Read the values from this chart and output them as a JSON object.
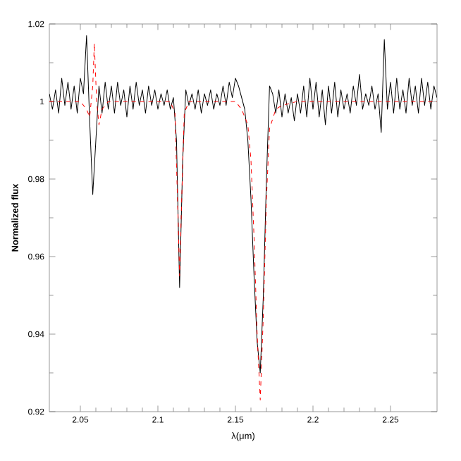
{
  "chart_data": {
    "type": "line",
    "xlabel": "λ(μm)",
    "ylabel": "Normalized flux",
    "xlim": [
      2.03,
      2.28
    ],
    "ylim": [
      0.92,
      1.02
    ],
    "xticks": [
      2.05,
      2.1,
      2.15,
      2.2,
      2.25
    ],
    "yticks": [
      0.92,
      0.94,
      0.96,
      0.98,
      1,
      1.02
    ],
    "grid": false,
    "marker": "none",
    "series": [
      {
        "color": "#000000",
        "line_style": "solid",
        "x": [
          2.03,
          2.032,
          2.034,
          2.036,
          2.038,
          2.04,
          2.042,
          2.044,
          2.046,
          2.048,
          2.05,
          2.052,
          2.054,
          2.056,
          2.058,
          2.06,
          2.062,
          2.064,
          2.066,
          2.068,
          2.07,
          2.072,
          2.074,
          2.076,
          2.078,
          2.08,
          2.082,
          2.084,
          2.086,
          2.088,
          2.09,
          2.092,
          2.094,
          2.096,
          2.098,
          2.1,
          2.102,
          2.104,
          2.106,
          2.108,
          2.11,
          2.112,
          2.114,
          2.116,
          2.118,
          2.12,
          2.122,
          2.124,
          2.126,
          2.128,
          2.13,
          2.132,
          2.134,
          2.136,
          2.138,
          2.14,
          2.142,
          2.144,
          2.146,
          2.148,
          2.15,
          2.152,
          2.154,
          2.156,
          2.158,
          2.16,
          2.162,
          2.164,
          2.166,
          2.168,
          2.17,
          2.172,
          2.174,
          2.176,
          2.178,
          2.18,
          2.182,
          2.184,
          2.186,
          2.188,
          2.19,
          2.192,
          2.194,
          2.196,
          2.198,
          2.2,
          2.202,
          2.204,
          2.206,
          2.208,
          2.21,
          2.212,
          2.214,
          2.216,
          2.218,
          2.22,
          2.222,
          2.224,
          2.226,
          2.228,
          2.23,
          2.232,
          2.234,
          2.236,
          2.238,
          2.24,
          2.242,
          2.244,
          2.246,
          2.248,
          2.25,
          2.252,
          2.254,
          2.256,
          2.258,
          2.26,
          2.262,
          2.264,
          2.266,
          2.268,
          2.27,
          2.272,
          2.274,
          2.276,
          2.278,
          2.28
        ],
        "values": [
          1.002,
          0.998,
          1.003,
          0.997,
          1.006,
          0.999,
          1.005,
          0.998,
          1.004,
          0.997,
          1.006,
          1.002,
          1.017,
          0.995,
          0.976,
          0.99,
          1.004,
          0.997,
          1.005,
          0.998,
          1.004,
          0.997,
          1.005,
          0.999,
          1.003,
          0.996,
          1.004,
          0.998,
          1.005,
          0.999,
          1.003,
          0.997,
          1.004,
          0.999,
          1.003,
          0.998,
          1.002,
          0.999,
          1.003,
          0.998,
          1.001,
          0.99,
          0.952,
          0.985,
          1.003,
          0.999,
          1.002,
          0.998,
          1.003,
          0.997,
          1.002,
          0.999,
          1.003,
          0.998,
          1.002,
          0.999,
          1.004,
          0.999,
          1.005,
          1.001,
          1.006,
          1.004,
          1.001,
          0.998,
          0.99,
          0.975,
          0.955,
          0.938,
          0.93,
          0.95,
          0.98,
          1.004,
          1.002,
          0.997,
          1.003,
          0.996,
          1.002,
          0.997,
          1.001,
          0.995,
          1.002,
          0.997,
          1.004,
          0.996,
          1.006,
          0.998,
          1.005,
          0.996,
          1.003,
          0.994,
          1.004,
          0.997,
          1.005,
          0.996,
          1.003,
          0.998,
          1.002,
          0.997,
          1.004,
          0.999,
          1.007,
          0.998,
          1.002,
          0.999,
          1.004,
          0.998,
          1.002,
          0.992,
          1.016,
          0.998,
          1.005,
          0.997,
          1.006,
          0.998,
          1.003,
          0.997,
          1.006,
          0.999,
          1.004,
          0.997,
          1.006,
          0.999,
          1.005,
          0.998,
          1.004,
          1.001
        ]
      },
      {
        "color": "#ff0000",
        "line_style": "dashed",
        "x": [
          2.03,
          2.05,
          2.054,
          2.056,
          2.058,
          2.059,
          2.0605,
          2.062,
          2.064,
          2.068,
          2.108,
          2.111,
          2.113,
          2.114,
          2.115,
          2.117,
          2.12,
          2.15,
          2.154,
          2.158,
          2.16,
          2.162,
          2.164,
          2.166,
          2.168,
          2.17,
          2.172,
          2.176,
          2.18,
          2.19,
          2.28
        ],
        "values": [
          1.0,
          1.0,
          0.998,
          0.996,
          1.004,
          1.015,
          1.0,
          0.994,
          0.998,
          1.0,
          1.0,
          0.997,
          0.97,
          0.955,
          0.97,
          0.997,
          1.0,
          1.0,
          0.998,
          0.994,
          0.985,
          0.965,
          0.94,
          0.923,
          0.945,
          0.975,
          0.993,
          0.998,
          0.999,
          1.0,
          1.0
        ]
      }
    ]
  }
}
